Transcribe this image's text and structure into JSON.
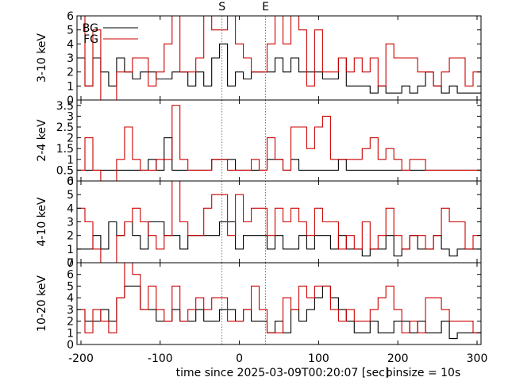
{
  "chart_data": {
    "type": "line",
    "style": "step",
    "x_range": [
      -205,
      305
    ],
    "x_ticks": [
      -200,
      -100,
      0,
      100,
      200,
      300
    ],
    "xlabel": "time since 2025-03-09T00:20:07 [sec]",
    "binsize_label": "binsize = 10s",
    "markers": [
      {
        "label": "S",
        "x": -22
      },
      {
        "label": "E",
        "x": 33
      }
    ],
    "legend": {
      "placement": "top-left",
      "entries": [
        {
          "label": "BG",
          "color": "#000000"
        },
        {
          "label": "FG",
          "color": "#cc0000"
        }
      ]
    },
    "bin_edges": [
      -205,
      -195,
      -185,
      -175,
      -165,
      -155,
      -145,
      -135,
      -125,
      -115,
      -105,
      -95,
      -85,
      -75,
      -65,
      -55,
      -45,
      -35,
      -25,
      -15,
      -5,
      5,
      15,
      25,
      35,
      45,
      55,
      65,
      75,
      85,
      95,
      105,
      115,
      125,
      135,
      145,
      155,
      165,
      175,
      185,
      195,
      205,
      215,
      225,
      235,
      245,
      255,
      265,
      275,
      285,
      295,
      305
    ],
    "panels": [
      {
        "ylabel": "3-10 keV",
        "ylim": [
          0,
          6
        ],
        "y_ticks": [
          0,
          1,
          2,
          3,
          4,
          5,
          6
        ],
        "series": [
          {
            "name": "BG",
            "color": "#000000",
            "values": [
              3,
              1,
              3,
              2,
              1,
              3,
              2,
              1.5,
              2,
              2,
              1.5,
              1.5,
              2,
              2,
              1,
              2,
              1,
              3,
              4,
              1,
              2,
              1.5,
              2,
              2,
              2,
              3,
              2,
              3,
              2,
              2,
              2,
              1.5,
              1.5,
              3,
              1,
              1,
              1,
              0.5,
              1,
              0.5,
              0.5,
              1,
              0.5,
              1,
              2,
              1,
              0.5,
              1,
              0.5,
              0.5,
              0.5
            ]
          },
          {
            "name": "FG",
            "color": "#cc0000",
            "values": [
              6,
              1,
              5,
              0,
              0,
              2,
              2,
              3,
              3,
              1,
              2,
              4,
              6,
              2,
              2,
              3,
              6,
              5,
              5,
              6,
              4,
              3,
              2,
              2,
              4,
              6,
              4,
              6,
              5,
              1,
              5,
              2,
              2,
              3,
              2,
              3,
              2,
              3,
              1,
              4,
              3,
              3,
              3,
              2,
              2,
              1,
              2,
              3,
              3,
              1,
              2
            ]
          }
        ]
      },
      {
        "ylabel": "2-4 keV",
        "ylim": [
          0,
          3.75
        ],
        "y_ticks": [
          0,
          0.5,
          1,
          1.5,
          2,
          2.5,
          3,
          3.5
        ],
        "series": [
          {
            "name": "BG",
            "color": "#000000",
            "values": [
              0.5,
              0.5,
              0.5,
              0.5,
              0.5,
              0.5,
              0.5,
              0.5,
              0.5,
              1,
              0.5,
              2,
              0.5,
              0.5,
              0.5,
              0.5,
              0.5,
              1,
              1,
              1,
              0.5,
              0.5,
              0.5,
              0.5,
              1,
              1,
              0.5,
              1,
              0.5,
              0.5,
              0.5,
              0.5,
              0.5,
              1,
              0.5,
              0.5,
              0.5,
              0.5,
              0.5,
              0.5,
              0.5,
              0.5,
              0.5,
              0.5,
              0.5,
              0.5,
              0.5,
              0.5,
              0.5,
              0.5,
              0.5
            ]
          },
          {
            "name": "FG",
            "color": "#cc0000",
            "values": [
              0.5,
              2,
              0.5,
              0,
              0,
              1,
              2.5,
              1,
              0.5,
              0.5,
              1,
              1,
              3.5,
              1,
              0.5,
              0.5,
              0.5,
              1,
              1,
              0.5,
              0.5,
              0.5,
              1,
              0.5,
              2,
              1,
              0.5,
              2.5,
              2.5,
              1.5,
              2.5,
              3,
              1,
              1,
              1,
              1,
              1.5,
              2,
              1,
              1.5,
              1,
              0.5,
              1,
              1,
              0.5,
              0.5,
              0.5,
              0.5,
              0.5,
              0.5,
              0.5
            ]
          }
        ]
      },
      {
        "ylabel": "4-10 keV",
        "ylim": [
          0,
          6
        ],
        "y_ticks": [
          0,
          1,
          2,
          3,
          4,
          5,
          6
        ],
        "series": [
          {
            "name": "BG",
            "color": "#000000",
            "values": [
              1,
              1,
              2,
              1,
              3,
              2,
              3,
              2,
              1,
              3,
              3,
              2,
              2,
              1,
              2,
              2,
              2,
              2,
              3,
              3,
              1,
              2,
              2,
              2,
              1,
              2,
              1,
              1,
              2,
              1,
              2,
              2,
              1,
              2,
              1,
              1,
              0.5,
              1,
              1,
              2,
              0.5,
              1,
              2,
              1,
              1,
              2,
              1,
              0.5,
              1,
              1,
              1
            ]
          },
          {
            "name": "FG",
            "color": "#cc0000",
            "values": [
              4,
              3,
              1,
              0,
              0,
              2,
              3,
              4,
              3,
              2,
              1,
              2,
              6,
              3,
              2,
              2,
              4,
              5,
              5,
              2,
              5,
              3,
              4,
              4,
              2,
              4,
              3,
              4,
              3,
              2,
              4,
              3,
              3,
              1,
              2,
              1,
              3,
              1,
              2,
              4,
              2,
              1,
              2,
              2,
              1,
              2,
              4,
              3,
              3,
              1,
              2
            ]
          }
        ]
      },
      {
        "ylabel": "10-20 keV",
        "ylim": [
          0,
          7
        ],
        "y_ticks": [
          0,
          1,
          2,
          3,
          4,
          5,
          6,
          7
        ],
        "series": [
          {
            "name": "BG",
            "color": "#000000",
            "values": [
              3,
              2,
              2,
              3,
              2,
              4,
              5,
              5,
              3,
              3,
              2,
              2,
              3,
              2,
              2,
              3,
              2,
              2,
              3,
              3,
              2,
              3,
              2,
              2,
              1,
              2,
              1,
              3,
              2,
              3,
              4,
              5,
              4,
              3,
              2,
              1,
              1,
              2,
              1,
              1,
              2,
              2,
              1,
              2,
              1,
              1,
              2,
              0.5,
              1,
              1,
              1
            ]
          },
          {
            "name": "FG",
            "color": "#cc0000",
            "values": [
              3,
              1,
              3,
              2,
              1,
              4,
              7,
              6,
              3,
              5,
              3,
              2,
              5,
              2,
              3,
              4,
              3,
              4,
              4,
              2,
              2,
              3,
              5,
              3,
              1,
              1,
              4,
              3,
              5,
              4,
              5,
              5,
              3,
              2,
              3,
              2,
              2,
              3,
              4,
              5,
              3,
              1,
              2,
              1,
              4,
              4,
              3,
              2,
              2,
              2,
              1
            ]
          }
        ]
      }
    ]
  }
}
